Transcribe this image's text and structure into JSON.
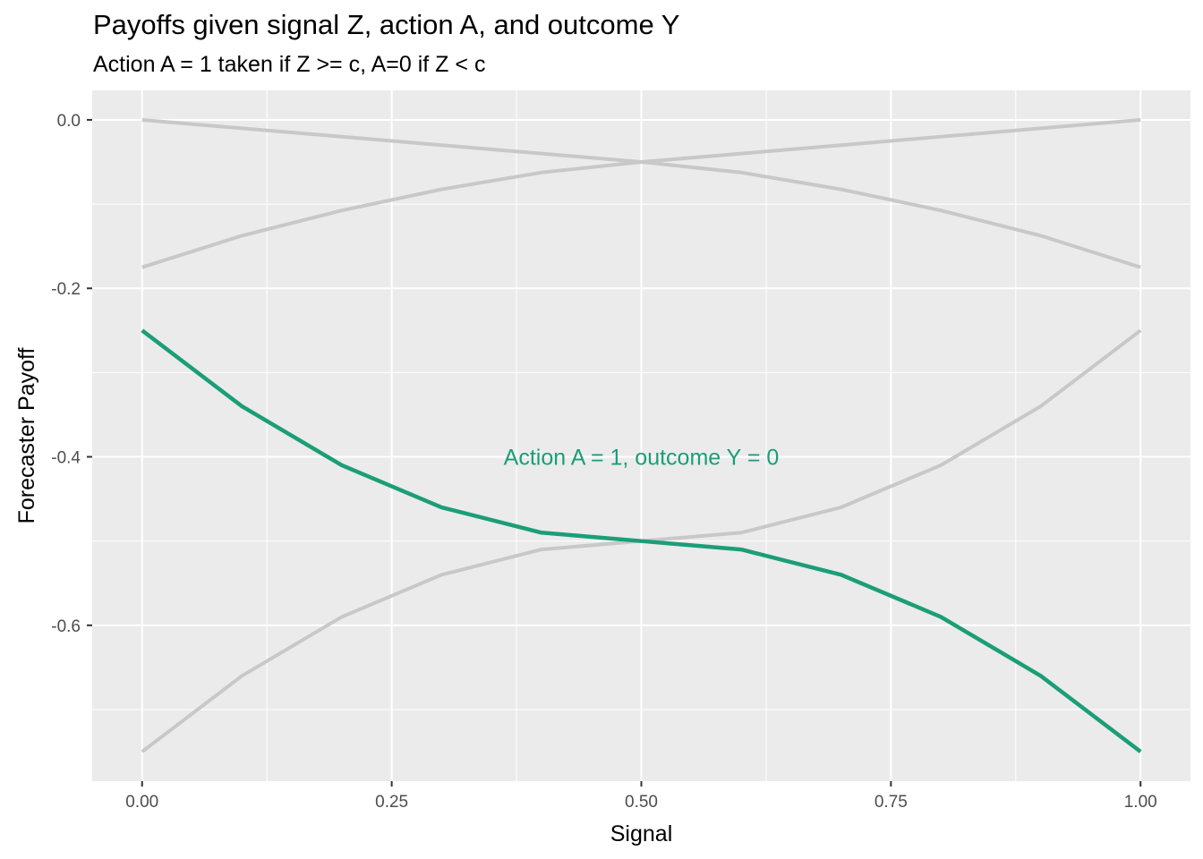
{
  "chart_data": {
    "type": "line",
    "title": "Payoffs given signal Z, action A, and outcome Y",
    "subtitle": "Action A = 1 taken if Z >= c, A=0 if Z < c",
    "xlabel": "Signal",
    "ylabel": "Forecaster Payoff",
    "xlim": [
      -0.05,
      1.05
    ],
    "ylim": [
      -0.785,
      0.035
    ],
    "x_ticks": [
      0.0,
      0.25,
      0.5,
      0.75,
      1.0
    ],
    "x_tick_labels": [
      "0.00",
      "0.25",
      "0.50",
      "0.75",
      "1.00"
    ],
    "y_ticks": [
      0.0,
      -0.2,
      -0.4,
      -0.6
    ],
    "y_tick_labels": [
      "0.0",
      "-0.2",
      "-0.4",
      "-0.6"
    ],
    "x_minor_ticks": [
      0.125,
      0.375,
      0.625,
      0.875
    ],
    "y_minor_ticks": [
      -0.1,
      -0.3,
      -0.5,
      -0.7
    ],
    "grid": true,
    "panel_color": "#ebebeb",
    "x": [
      0.0,
      0.1,
      0.2,
      0.3,
      0.4,
      0.5,
      0.6,
      0.7,
      0.8,
      0.9,
      1.0
    ],
    "series": [
      {
        "color": "#c8c8c8",
        "highlight": false,
        "values": [
          0.0,
          -0.01,
          -0.02,
          -0.03,
          -0.04,
          -0.05,
          -0.0625,
          -0.0825,
          -0.1075,
          -0.1375,
          -0.175
        ]
      },
      {
        "color": "#c8c8c8",
        "highlight": false,
        "values": [
          -0.175,
          -0.1375,
          -0.1075,
          -0.0825,
          -0.0625,
          -0.05,
          -0.04,
          -0.03,
          -0.02,
          -0.01,
          0.0
        ]
      },
      {
        "color": "#c8c8c8",
        "highlight": false,
        "values": [
          -0.75,
          -0.66,
          -0.59,
          -0.54,
          -0.51,
          -0.5,
          -0.49,
          -0.46,
          -0.41,
          -0.34,
          -0.25
        ]
      },
      {
        "color": "#1b9e77",
        "highlight": true,
        "values": [
          -0.25,
          -0.34,
          -0.41,
          -0.46,
          -0.49,
          -0.5,
          -0.51,
          -0.54,
          -0.59,
          -0.66,
          -0.75
        ]
      }
    ],
    "annotation": {
      "text": "Action A = 1, outcome Y = 0",
      "x": 0.5,
      "y": -0.4,
      "color": "#1b9e77"
    }
  }
}
